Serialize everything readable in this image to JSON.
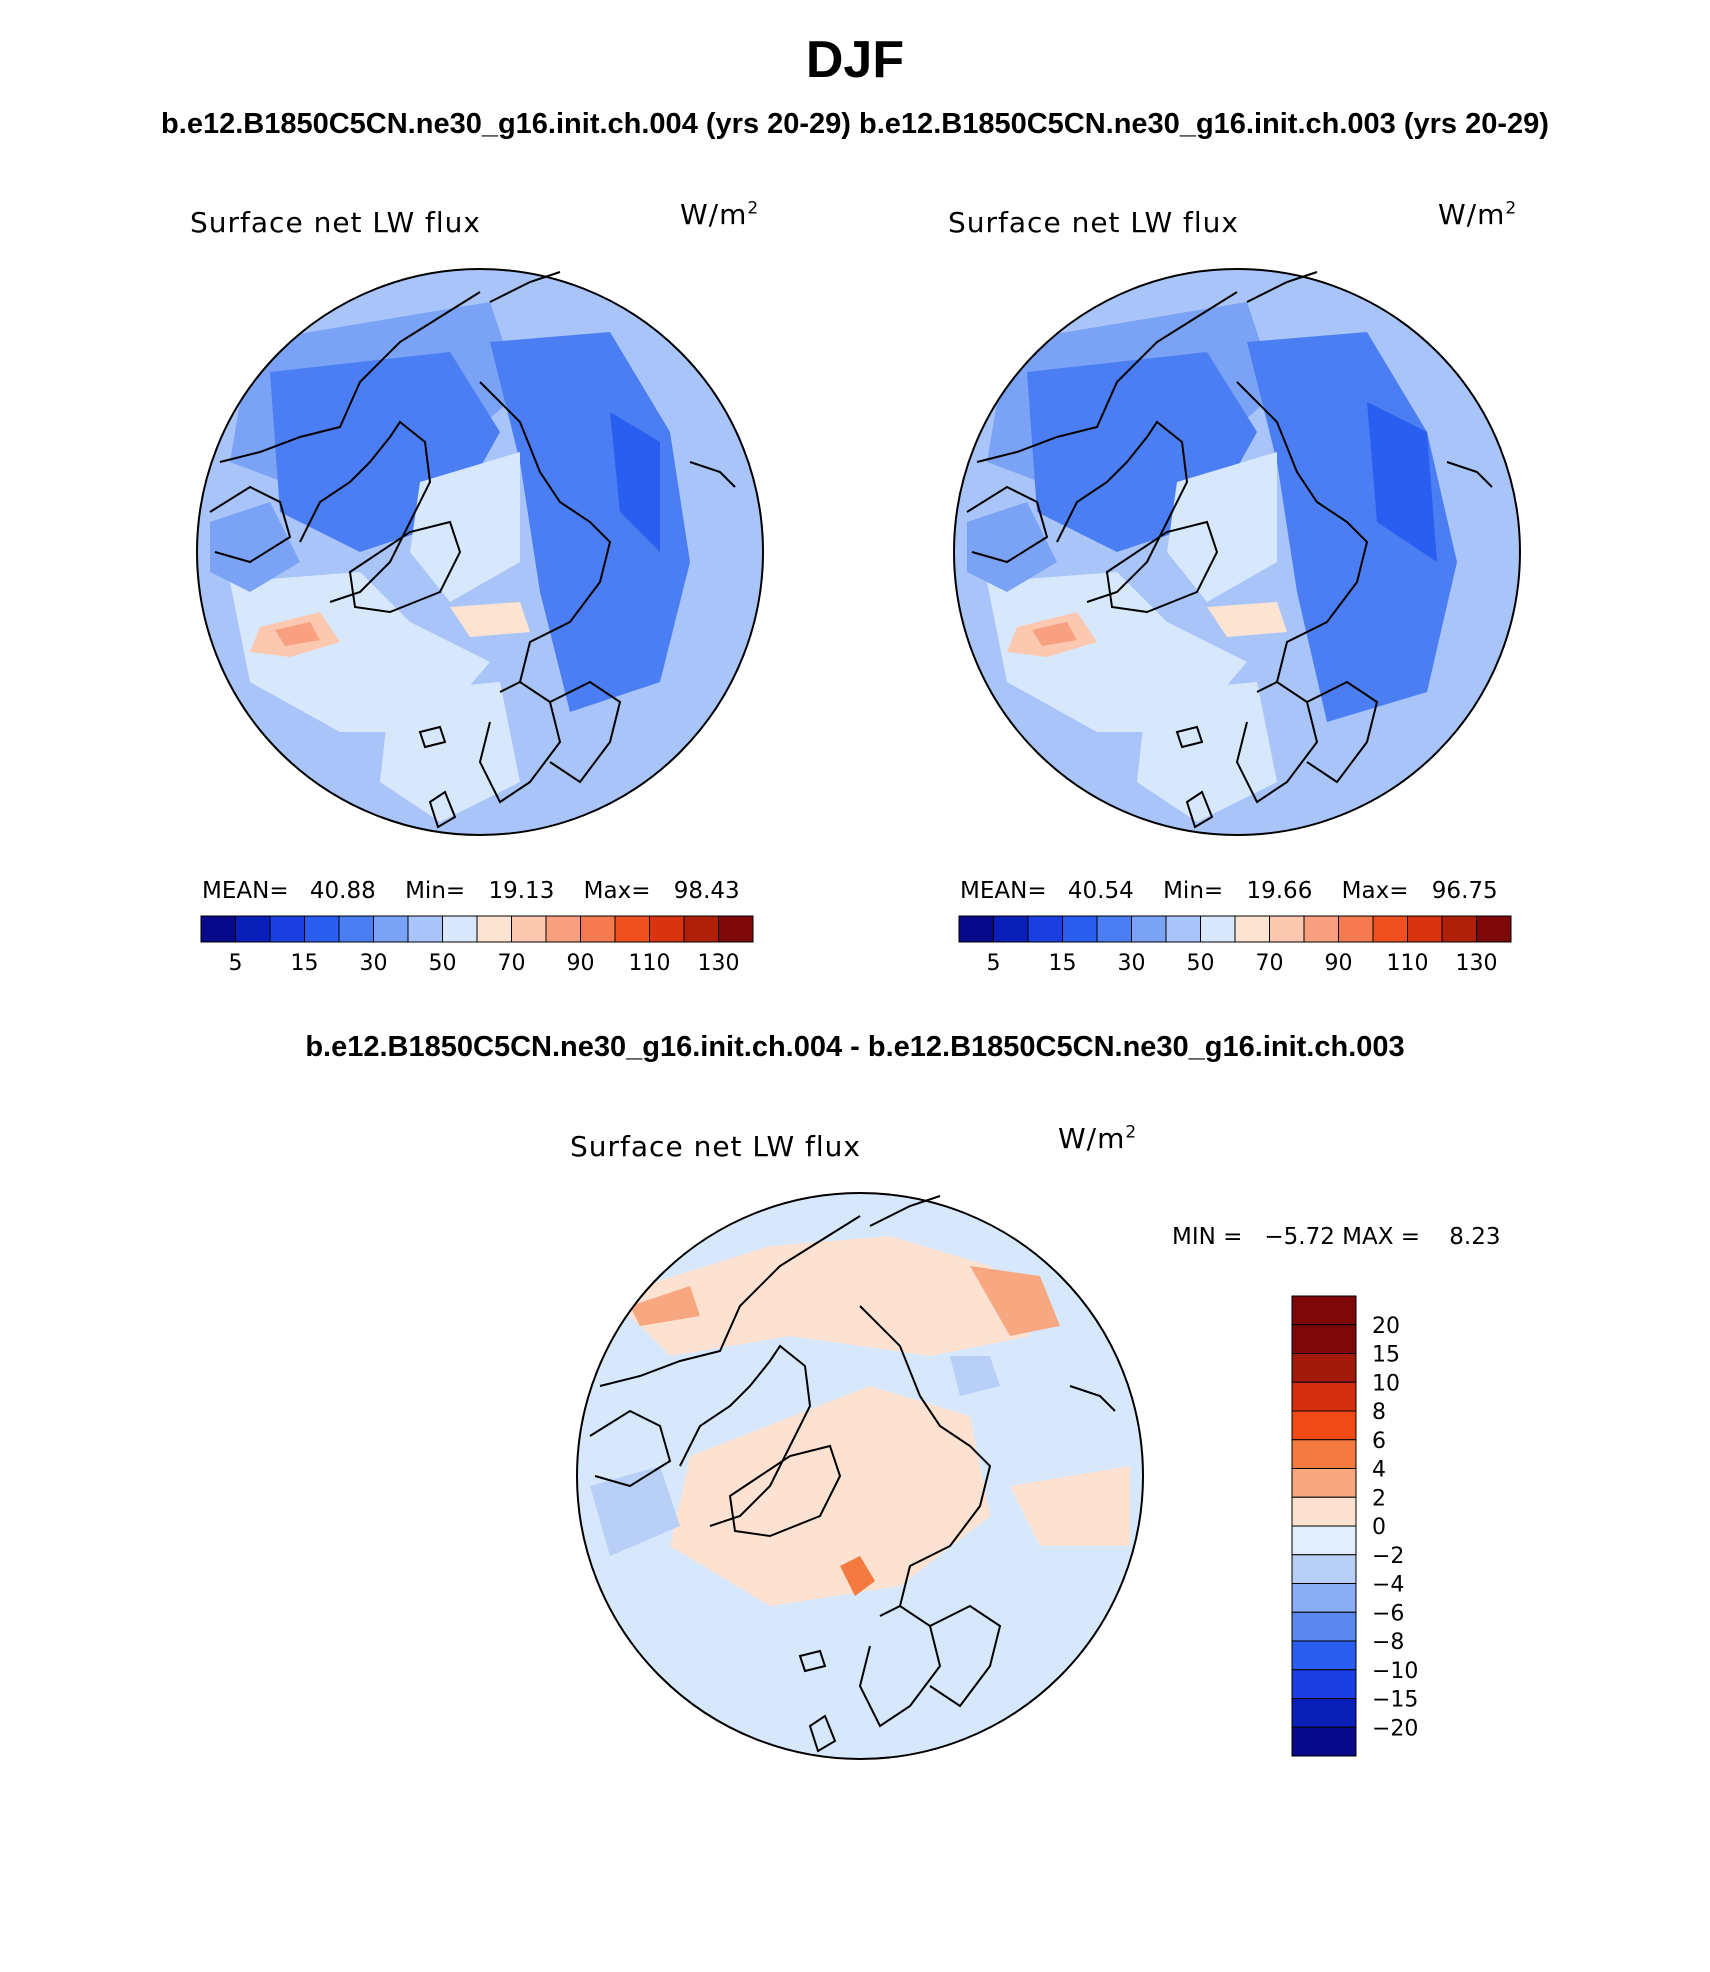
{
  "figure": {
    "title": "DJF",
    "subtitle_left": "b.e12.B1850C5CN.ne30_g16.init.ch.004 (yrs 20-29)",
    "subtitle_right": "b.e12.B1850C5CN.ne30_g16.init.ch.003 (yrs 20-29)",
    "diff_title": "b.e12.B1850C5CN.ne30_g16.init.ch.004 - b.e12.B1850C5CN.ne30_g16.init.ch.003"
  },
  "panels": [
    {
      "variable": "Surface net LW flux",
      "units_base": "W/m",
      "units_exp": "2",
      "stats": {
        "mean_label": "MEAN=",
        "mean": "40.88",
        "min_label": "Min=",
        "min": "19.13",
        "max_label": "Max=",
        "max": "98.43"
      }
    },
    {
      "variable": "Surface net LW flux",
      "units_base": "W/m",
      "units_exp": "2",
      "stats": {
        "mean_label": "MEAN=",
        "mean": "40.54",
        "min_label": "Min=",
        "min": "19.66",
        "max_label": "Max=",
        "max": "96.75"
      }
    },
    {
      "variable": "Surface net LW flux",
      "units_base": "W/m",
      "units_exp": "2",
      "stats_text": "MIN =   −5.72 MAX =    8.23"
    }
  ],
  "colorbar_abs": {
    "colors": [
      "#08088a",
      "#0a1fb8",
      "#1a3ee0",
      "#2a5ef0",
      "#4a7ef2",
      "#7aa2f5",
      "#a8c4f8",
      "#d8e8fc",
      "#fde4d2",
      "#fcc8b0",
      "#f8a080",
      "#f57a50",
      "#f05020",
      "#d83410",
      "#b02008",
      "#7e0808"
    ],
    "tick_labels": [
      "5",
      "15",
      "30",
      "50",
      "70",
      "90",
      "110",
      "130"
    ]
  },
  "colorbar_diff": {
    "colors": [
      "#7e0808",
      "#a41a0a",
      "#d43010",
      "#f04a18",
      "#f57a40",
      "#f8a880",
      "#fde2d2",
      "#e2eefc",
      "#b8d0f8",
      "#8aaef5",
      "#5a88f0",
      "#2a5ef0",
      "#1a3ee0",
      "#0a1fb8",
      "#08088a"
    ],
    "tick_labels": [
      "20",
      "15",
      "10",
      "8",
      "6",
      "4",
      "2",
      "0",
      "−2",
      "−4",
      "−6",
      "−8",
      "−10",
      "−15",
      "−20"
    ]
  },
  "map_styles": {
    "abs_base": "#a8c4f8",
    "abs_blobs": [
      {
        "color": "#7aa2f5"
      },
      {
        "color": "#4a7ef2"
      },
      {
        "color": "#4a7ef2"
      },
      {
        "color": "#2a5ef0"
      },
      {
        "color": "#d8e8fc"
      },
      {
        "color": "#d8e8fc"
      },
      {
        "color": "#fcc8b0"
      },
      {
        "color": "#f8a080"
      },
      {
        "color": "#fde4d2"
      },
      {
        "color": "#d8e8fc"
      },
      {
        "color": "#7aa2f5"
      }
    ],
    "diff_base": "#d8e8fc",
    "diff_blobs": [
      {
        "color": "#fde2d2"
      },
      {
        "color": "#f8a880"
      },
      {
        "color": "#fde2d2"
      },
      {
        "color": "#b8d0f8"
      },
      {
        "color": "#f57a40"
      },
      {
        "color": "#fde2d2"
      },
      {
        "color": "#b8d0f8"
      },
      {
        "color": "#f8a880"
      }
    ]
  }
}
